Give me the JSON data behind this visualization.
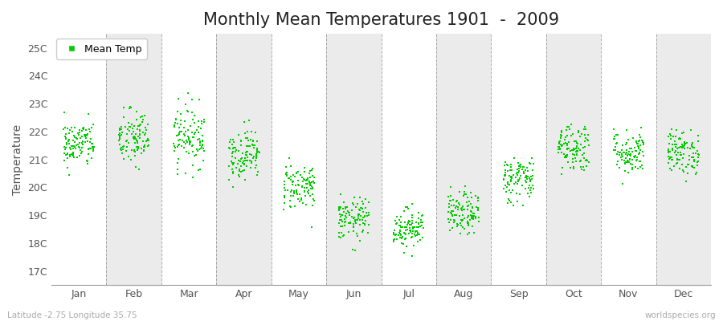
{
  "title": "Monthly Mean Temperatures 1901  -  2009",
  "ylabel": "Temperature",
  "bottom_left": "Latitude -2.75 Longitude 35.75",
  "bottom_right": "worldspecies.org",
  "ytick_labels": [
    "17C",
    "18C",
    "19C",
    "20C",
    "21C",
    "22C",
    "23C",
    "24C",
    "25C"
  ],
  "ytick_values": [
    17,
    18,
    19,
    20,
    21,
    22,
    23,
    24,
    25
  ],
  "ylim": [
    16.5,
    25.5
  ],
  "months": [
    "Jan",
    "Feb",
    "Mar",
    "Apr",
    "May",
    "Jun",
    "Jul",
    "Aug",
    "Sep",
    "Oct",
    "Nov",
    "Dec"
  ],
  "month_means": [
    21.55,
    21.75,
    21.85,
    21.2,
    20.05,
    18.85,
    18.55,
    19.05,
    20.3,
    21.45,
    21.25,
    21.25
  ],
  "month_stds": [
    0.42,
    0.52,
    0.55,
    0.45,
    0.42,
    0.38,
    0.35,
    0.38,
    0.42,
    0.45,
    0.4,
    0.4
  ],
  "dot_color": "#00cc00",
  "background_color": "#ffffff",
  "band_color_odd": "#ffffff",
  "band_color_even": "#ebebeb",
  "n_years": 109,
  "random_seed": 42,
  "dot_size": 3,
  "legend_square_color": "#00cc00",
  "legend_label": "Mean Temp",
  "dashed_line_color": "#888888",
  "title_fontsize": 15,
  "axis_fontsize": 10,
  "tick_fontsize": 9
}
